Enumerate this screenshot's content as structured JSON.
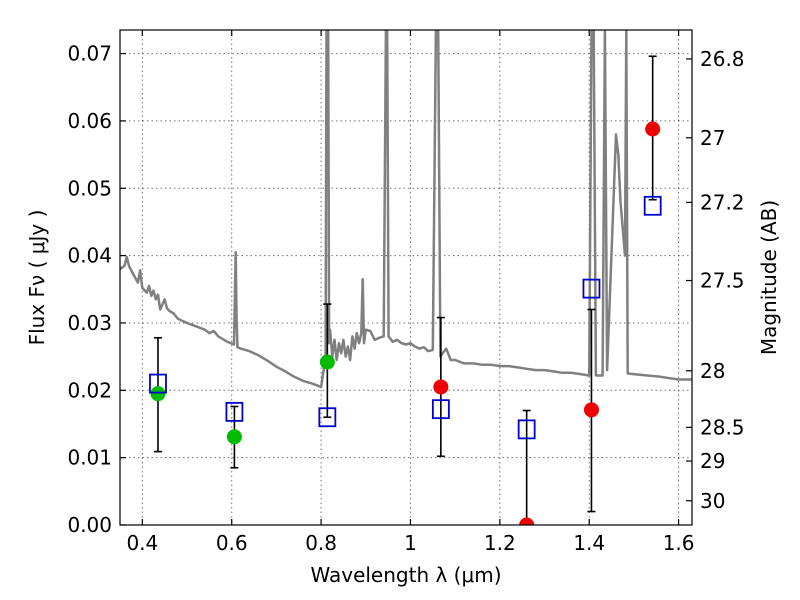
{
  "chart_data": {
    "type": "scatter",
    "title": "",
    "xlabel": "Wavelength  λ (μm)",
    "ylabel_left": "Flux  Fν  ( μJy )",
    "ylabel_right": "Magnitude (AB)",
    "xlim": [
      0.35,
      1.63
    ],
    "ylim": [
      0.0,
      0.0735
    ],
    "xticks": [
      {
        "value": 0.4,
        "label": "0.4"
      },
      {
        "value": 0.6,
        "label": "0.6"
      },
      {
        "value": 0.8,
        "label": "0.8"
      },
      {
        "value": 1.0,
        "label": "1"
      },
      {
        "value": 1.2,
        "label": "1.2"
      },
      {
        "value": 1.4,
        "label": "1.4"
      },
      {
        "value": 1.6,
        "label": "1.6"
      }
    ],
    "yticks": [
      {
        "value": 0.0,
        "label": "0.00"
      },
      {
        "value": 0.01,
        "label": "0.01"
      },
      {
        "value": 0.02,
        "label": "0.02"
      },
      {
        "value": 0.03,
        "label": "0.03"
      },
      {
        "value": 0.04,
        "label": "0.04"
      },
      {
        "value": 0.05,
        "label": "0.05"
      },
      {
        "value": 0.06,
        "label": "0.06"
      },
      {
        "value": 0.07,
        "label": "0.07"
      }
    ],
    "mag_ticks": [
      {
        "label": "26.8",
        "flux": 0.0692
      },
      {
        "label": "27",
        "flux": 0.0575
      },
      {
        "label": "27.2",
        "flux": 0.0479
      },
      {
        "label": "27.5",
        "flux": 0.0363
      },
      {
        "label": "28",
        "flux": 0.0229
      },
      {
        "label": "28.5",
        "flux": 0.0145
      },
      {
        "label": "29",
        "flux": 0.0095
      },
      {
        "label": "30",
        "flux": 0.0036
      }
    ],
    "colors": {
      "green": "#00bb00",
      "red": "#ee0000",
      "blue": "#0000cc",
      "model": "#808080",
      "errorbar": "#000000"
    },
    "series": [
      {
        "name": "observed-green",
        "marker": "circle",
        "color": "green",
        "points": [
          {
            "x": 0.435,
            "y": 0.0195,
            "lo": 0.0109,
            "hi": 0.0278
          },
          {
            "x": 0.606,
            "y": 0.0131,
            "lo": 0.0085,
            "hi": 0.0176
          },
          {
            "x": 0.814,
            "y": 0.0242,
            "lo": 0.016,
            "hi": 0.0328
          }
        ]
      },
      {
        "name": "observed-red",
        "marker": "circle",
        "color": "red",
        "points": [
          {
            "x": 1.068,
            "y": 0.0205,
            "lo": 0.0102,
            "hi": 0.0308
          },
          {
            "x": 1.26,
            "y": 0.0,
            "lo": 0.0,
            "hi": 0.017
          },
          {
            "x": 1.405,
            "y": 0.0171,
            "lo": 0.002,
            "hi": 0.032
          },
          {
            "x": 1.542,
            "y": 0.0588,
            "lo": 0.0483,
            "hi": 0.0696
          }
        ]
      },
      {
        "name": "model-photometry",
        "marker": "square",
        "color": "blue",
        "points": [
          {
            "x": 0.435,
            "y": 0.021
          },
          {
            "x": 0.606,
            "y": 0.0168
          },
          {
            "x": 0.814,
            "y": 0.016
          },
          {
            "x": 1.068,
            "y": 0.0172
          },
          {
            "x": 1.26,
            "y": 0.0142
          },
          {
            "x": 1.405,
            "y": 0.0351
          },
          {
            "x": 1.542,
            "y": 0.0474
          }
        ]
      }
    ],
    "model_sed": {
      "x": [
        0.35,
        0.36,
        0.365,
        0.37,
        0.38,
        0.39,
        0.395,
        0.4,
        0.41,
        0.415,
        0.42,
        0.425,
        0.43,
        0.435,
        0.44,
        0.45,
        0.455,
        0.46,
        0.47,
        0.48,
        0.5,
        0.52,
        0.54,
        0.55,
        0.56,
        0.57,
        0.58,
        0.59,
        0.605,
        0.609,
        0.611,
        0.613,
        0.62,
        0.64,
        0.66,
        0.68,
        0.7,
        0.72,
        0.74,
        0.76,
        0.78,
        0.8,
        0.81,
        0.812,
        0.814,
        0.816,
        0.818,
        0.82,
        0.825,
        0.83,
        0.835,
        0.84,
        0.845,
        0.85,
        0.855,
        0.86,
        0.865,
        0.87,
        0.875,
        0.88,
        0.885,
        0.89,
        0.893,
        0.896,
        0.9,
        0.91,
        0.92,
        0.93,
        0.94,
        0.945,
        0.948,
        0.951,
        0.96,
        0.97,
        0.98,
        0.99,
        1.0,
        1.01,
        1.02,
        1.03,
        1.04,
        1.05,
        1.057,
        1.062,
        1.067,
        1.072,
        1.08,
        1.09,
        1.1,
        1.12,
        1.14,
        1.16,
        1.18,
        1.2,
        1.22,
        1.24,
        1.26,
        1.28,
        1.3,
        1.32,
        1.34,
        1.36,
        1.38,
        1.4,
        1.405,
        1.41,
        1.415,
        1.43,
        1.435,
        1.44,
        1.46,
        1.465,
        1.47,
        1.48,
        1.483,
        1.486,
        1.5,
        1.53,
        1.56,
        1.58,
        1.6,
        1.63
      ],
      "y": [
        0.038,
        0.0385,
        0.0398,
        0.0385,
        0.0372,
        0.036,
        0.0378,
        0.0352,
        0.0345,
        0.0355,
        0.034,
        0.0348,
        0.0335,
        0.0342,
        0.032,
        0.0335,
        0.0322,
        0.0318,
        0.0314,
        0.0306,
        0.03,
        0.0295,
        0.029,
        0.0285,
        0.0288,
        0.028,
        0.0276,
        0.0272,
        0.0268,
        0.0405,
        0.0305,
        0.0264,
        0.0262,
        0.0258,
        0.0252,
        0.0244,
        0.0235,
        0.0228,
        0.022,
        0.0214,
        0.021,
        0.0205,
        0.025,
        0.0735,
        0.0735,
        0.0735,
        0.027,
        0.029,
        0.025,
        0.0275,
        0.0245,
        0.027,
        0.0255,
        0.0275,
        0.025,
        0.0265,
        0.0245,
        0.028,
        0.0262,
        0.0285,
        0.027,
        0.0285,
        0.0365,
        0.027,
        0.029,
        0.0288,
        0.0275,
        0.0278,
        0.028,
        0.0735,
        0.0735,
        0.028,
        0.0272,
        0.0275,
        0.027,
        0.0268,
        0.027,
        0.0265,
        0.0262,
        0.0264,
        0.0258,
        0.026,
        0.0735,
        0.0735,
        0.025,
        0.0255,
        0.0262,
        0.0245,
        0.0245,
        0.024,
        0.024,
        0.0238,
        0.0238,
        0.0236,
        0.0236,
        0.0234,
        0.0232,
        0.023,
        0.023,
        0.0228,
        0.0226,
        0.0226,
        0.0224,
        0.0222,
        0.0735,
        0.0735,
        0.0222,
        0.0222,
        0.0735,
        0.023,
        0.058,
        0.055,
        0.048,
        0.04,
        0.0735,
        0.0225,
        0.0224,
        0.0222,
        0.022,
        0.0218,
        0.0216,
        0.0216
      ]
    }
  }
}
